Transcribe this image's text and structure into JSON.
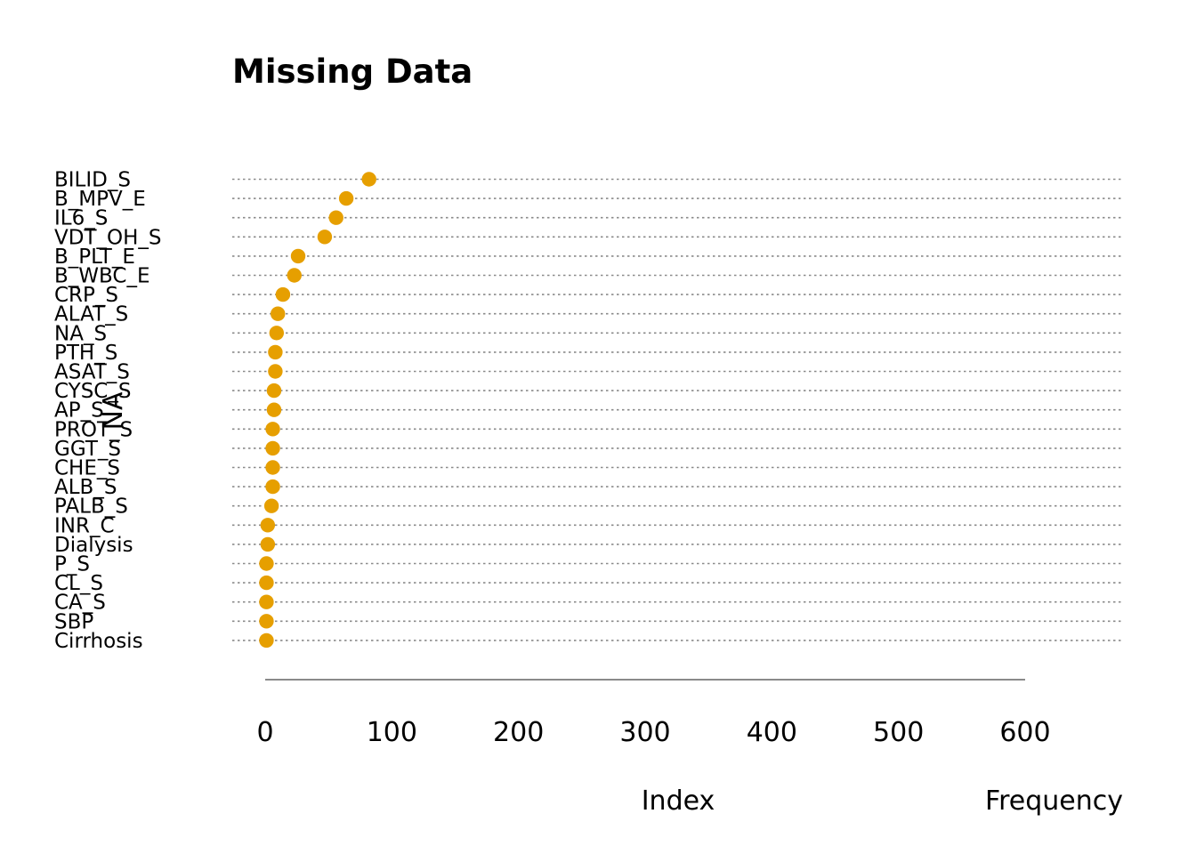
{
  "chart_data": {
    "type": "scatter",
    "title": "Missing Data",
    "xlabel": "Index",
    "x_axis_note": "Frequency",
    "ylabel": "NA",
    "xlim": [
      -26,
      678
    ],
    "xticks": [
      0,
      100,
      200,
      300,
      400,
      500,
      600
    ],
    "categories": [
      "BILID_S",
      "B_MPV_E",
      "IL6_S",
      "VDT_OH_S",
      "B_PLT_E",
      "B_WBC_E",
      "CRP_S",
      "ALAT_S",
      "NA_S",
      "PTH_S",
      "ASAT_S",
      "CYSC_S",
      "AP_S",
      "PROT_S",
      "GGT_S",
      "CHE_S",
      "ALB_S",
      "PALB_S",
      "INR_C",
      "Dialysis",
      "P_S",
      "CL_S",
      "CA_S",
      "SBP",
      "Cirrhosis"
    ],
    "values": [
      82,
      64,
      56,
      47,
      26,
      23,
      14,
      10,
      9,
      8,
      8,
      7,
      7,
      6,
      6,
      6,
      6,
      5,
      2,
      2,
      1,
      1,
      1,
      1,
      1
    ],
    "point_color": "#E69F00",
    "grid": true
  }
}
